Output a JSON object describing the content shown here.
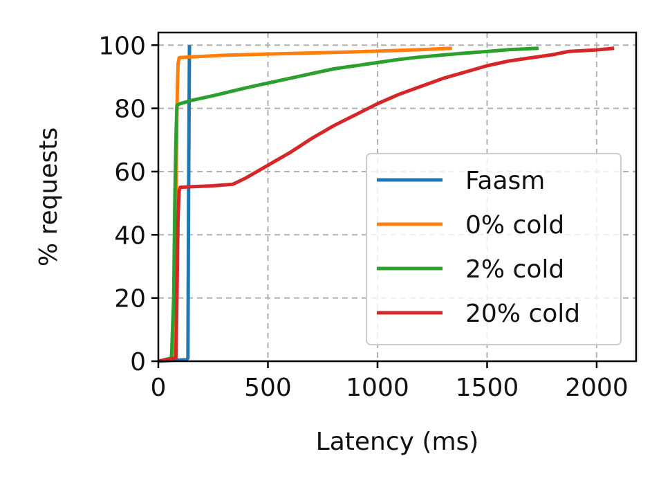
{
  "chart_data": {
    "type": "line",
    "title": "",
    "xlabel": "Latency (ms)",
    "ylabel": "% requests",
    "xlim": [
      0,
      2180
    ],
    "ylim": [
      0,
      104
    ],
    "xticks": [
      0,
      500,
      1000,
      1500,
      2000
    ],
    "yticks": [
      0,
      20,
      40,
      60,
      80,
      100
    ],
    "grid": true,
    "legend_position": "center-right",
    "series": [
      {
        "name": "Faasm",
        "color": "#1f77b4",
        "x": [
          0,
          130,
          135,
          138,
          142
        ],
        "y": [
          0,
          0.5,
          1,
          50,
          100
        ]
      },
      {
        "name": "0% cold",
        "color": "#ff7f0e",
        "x": [
          0,
          70,
          80,
          85,
          90,
          95,
          100,
          150,
          300,
          500,
          800,
          1000,
          1200,
          1340
        ],
        "y": [
          0,
          1,
          40,
          80,
          94,
          96,
          96.1,
          96.3,
          96.8,
          97.2,
          97.7,
          98.1,
          98.6,
          99
        ]
      },
      {
        "name": "2% cold",
        "color": "#2ca02c",
        "x": [
          0,
          60,
          70,
          75,
          80,
          85,
          100,
          150,
          250,
          400,
          600,
          800,
          1000,
          1100,
          1200,
          1300,
          1400,
          1500,
          1600,
          1735
        ],
        "y": [
          0,
          1,
          20,
          50,
          70,
          81,
          81.5,
          82.5,
          84,
          86.5,
          89.5,
          92.5,
          94.5,
          95.5,
          96.3,
          96.9,
          97.5,
          98,
          98.6,
          99
        ]
      },
      {
        "name": "20% cold",
        "color": "#d62728",
        "x": [
          0,
          80,
          85,
          90,
          95,
          100,
          150,
          250,
          340,
          400,
          500,
          600,
          700,
          800,
          900,
          1000,
          1100,
          1200,
          1300,
          1400,
          1500,
          1600,
          1700,
          1800,
          1870,
          2000,
          2080
        ],
        "y": [
          0,
          1,
          20,
          45,
          54,
          55,
          55.2,
          55.5,
          56,
          58,
          62,
          66,
          70.5,
          74.5,
          78,
          81.5,
          84.5,
          87,
          89.5,
          91.5,
          93.5,
          95,
          96,
          97,
          98,
          98.5,
          99
        ]
      }
    ]
  }
}
